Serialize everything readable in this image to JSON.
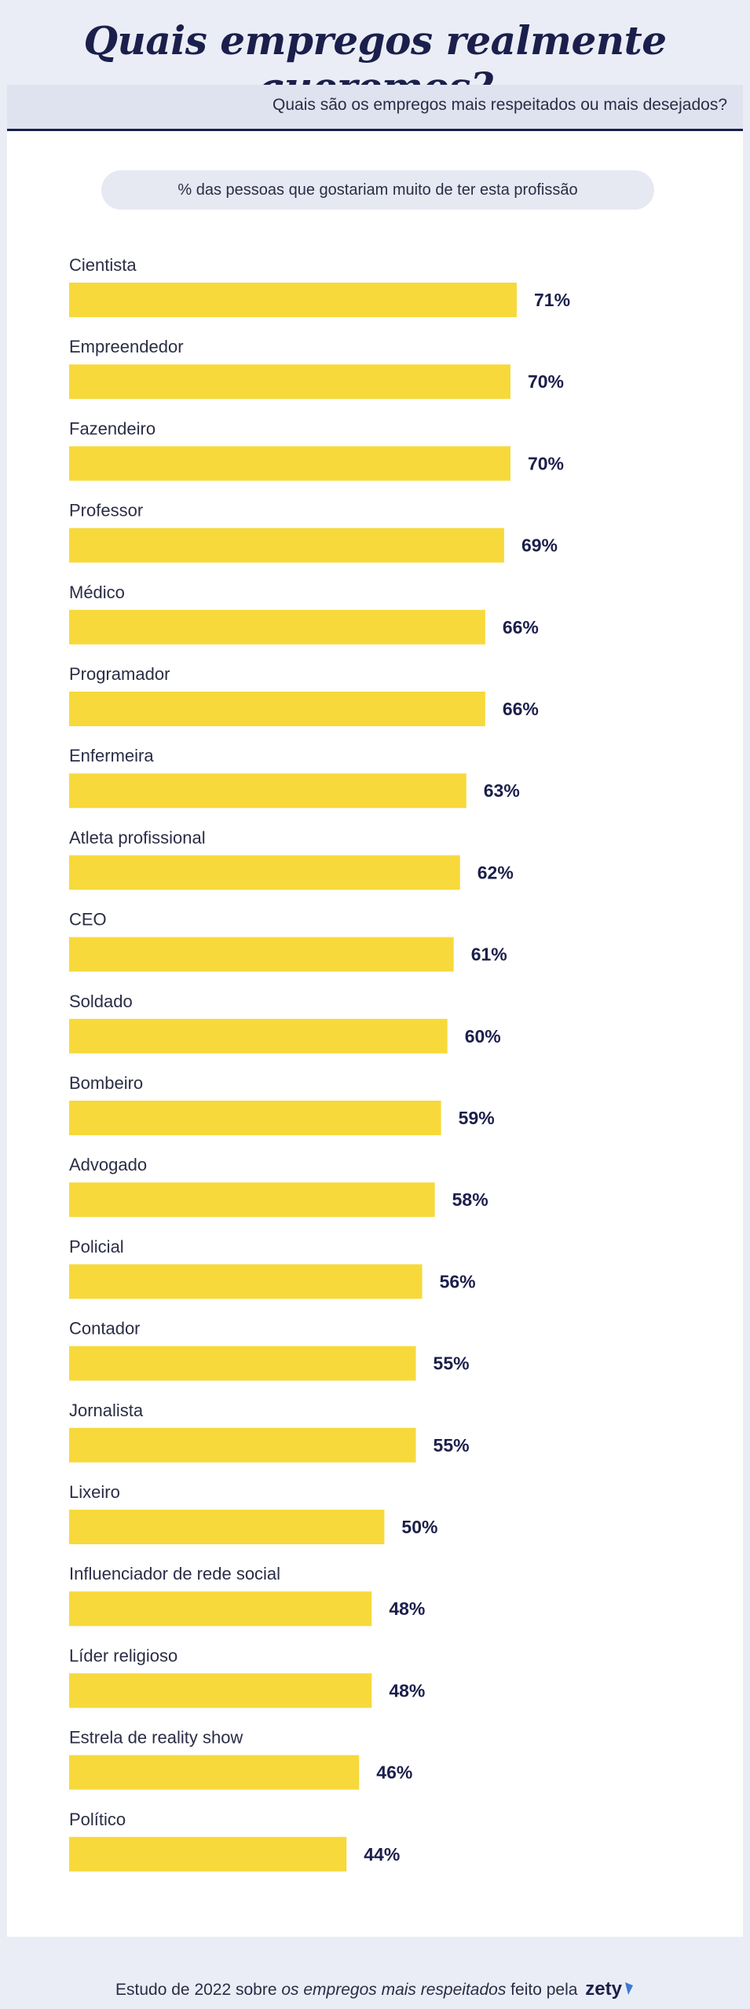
{
  "header": {
    "title": "Quais empregos realmente queremos?",
    "subtitle": "Quais são os empregos mais respeitados ou mais desejados?",
    "pill": "% das pessoas que gostariam muito de ter esta profissão"
  },
  "chart_data": {
    "type": "bar",
    "orientation": "horizontal",
    "categories": [
      "Cientista",
      "Empreendedor",
      "Fazendeiro",
      "Professor",
      "Médico",
      "Programador",
      "Enfermeira",
      "Atleta profissional",
      "CEO",
      "Soldado",
      "Bombeiro",
      "Advogado",
      "Policial",
      "Contador",
      "Jornalista",
      "Lixeiro",
      "Influenciador de rede social",
      "Líder religioso",
      "Estrela de reality show",
      "Político"
    ],
    "values": [
      71,
      70,
      70,
      69,
      66,
      66,
      63,
      62,
      61,
      60,
      59,
      58,
      56,
      55,
      55,
      50,
      48,
      48,
      46,
      44
    ],
    "value_labels": [
      "71%",
      "70%",
      "70%",
      "69%",
      "66%",
      "66%",
      "63%",
      "62%",
      "61%",
      "60%",
      "59%",
      "58%",
      "56%",
      "55%",
      "55%",
      "50%",
      "48%",
      "48%",
      "46%",
      "44%"
    ],
    "unit": "%",
    "bar_color": "#f7d93b",
    "grid": false
  },
  "footer": {
    "prefix": "Estudo de 2022 sobre ",
    "emphasis": "os empregos mais respeitados",
    "suffix": " feito pela",
    "brand": "zety"
  },
  "colors": {
    "navy": "#1b1f4b",
    "bar": "#f7d93b",
    "background": "#eaedf5",
    "accent": "#3a7bd5"
  }
}
